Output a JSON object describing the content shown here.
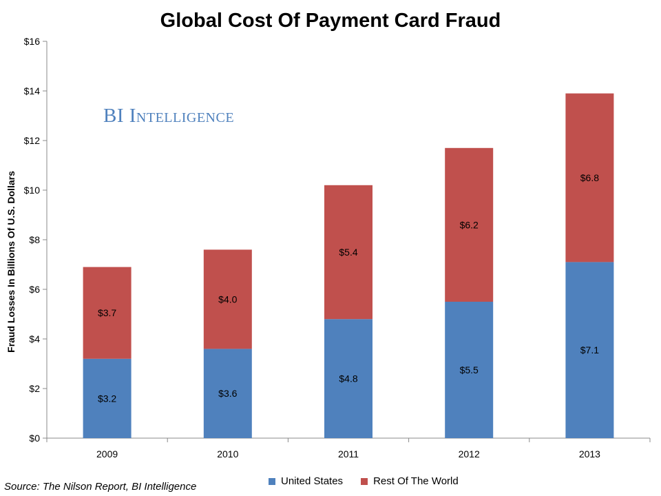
{
  "chart_data": {
    "type": "bar",
    "stacked": true,
    "title": "Global Cost Of Payment Card Fraud",
    "ylabel": "Fraud Losses In Billions Of U.S. Dollars",
    "xlabel": "",
    "categories": [
      "2009",
      "2010",
      "2011",
      "2012",
      "2013"
    ],
    "series": [
      {
        "name": "United States",
        "values": [
          3.2,
          3.6,
          4.8,
          5.5,
          7.1
        ],
        "labels": [
          "$3.2",
          "$3.6",
          "$4.8",
          "$5.5",
          "$7.1"
        ],
        "color": "#4f81bd"
      },
      {
        "name": "Rest Of The World",
        "values": [
          3.7,
          4.0,
          5.4,
          6.2,
          6.8
        ],
        "labels": [
          "$3.7",
          "$4.0",
          "$5.4",
          "$6.2",
          "$6.8"
        ],
        "color": "#c0504d"
      }
    ],
    "ylim": [
      0,
      16
    ],
    "yticks": [
      0,
      2,
      4,
      6,
      8,
      10,
      12,
      14,
      16
    ],
    "ytick_labels": [
      "$0",
      "$2",
      "$4",
      "$6",
      "$8",
      "$10",
      "$12",
      "$14",
      "$16"
    ],
    "grid": false,
    "legend_position": "bottom"
  },
  "brand": "BI Intelligence",
  "source": "Source: The Nilson Report, BI Intelligence"
}
